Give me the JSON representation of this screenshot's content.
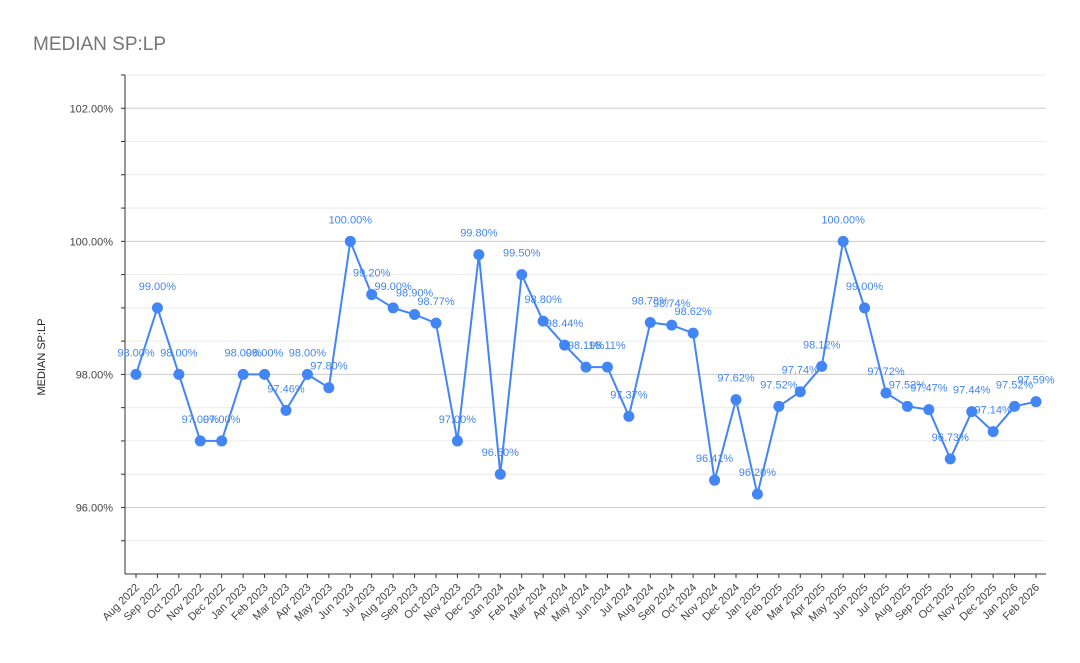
{
  "chart_data": {
    "type": "line",
    "title": "MEDIAN SP:LP",
    "ylabel": "MEDIAN SP:LP",
    "xlabel": "",
    "ylim": [
      95,
      102.5
    ],
    "y_ticks": [
      "96.00%",
      "98.00%",
      "100.00%",
      "102.00%"
    ],
    "y_tick_values": [
      96,
      98,
      100,
      102
    ],
    "grid": true,
    "legend": "none",
    "color": "#4285f4",
    "categories": [
      "Aug 2022",
      "Sep 2022",
      "Oct 2022",
      "Nov 2022",
      "Dec 2022",
      "Jan 2023",
      "Feb 2023",
      "Mar 2023",
      "Apr 2023",
      "May 2023",
      "Jun 2023",
      "Jul 2023",
      "Aug 2023",
      "Sep 2023",
      "Oct 2023",
      "Nov 2023",
      "Dec 2023",
      "Jan 2024",
      "Feb 2024",
      "Mar 2024",
      "Apr 2024",
      "May 2024",
      "Jun 2024",
      "Jul 2024",
      "Aug 2024",
      "Sep 2024",
      "Oct 2024",
      "Nov 2024",
      "Dec 2024",
      "Jan 2025",
      "Feb 2025",
      "Mar 2025",
      "Apr 2025",
      "May 2025",
      "Jun 2025",
      "Jul 2025",
      "Aug 2025",
      "Sep 2025",
      "Oct 2025",
      "Nov 2025",
      "Dec 2025",
      "Jan 2026",
      "Feb 2026"
    ],
    "values": [
      98.0,
      99.0,
      98.0,
      97.0,
      97.0,
      98.0,
      98.0,
      97.46,
      98.0,
      97.8,
      100.0,
      99.2,
      99.0,
      98.9,
      98.77,
      97.0,
      99.8,
      96.5,
      99.5,
      98.8,
      98.44,
      98.11,
      98.11,
      97.37,
      98.78,
      98.74,
      98.62,
      96.41,
      97.62,
      96.2,
      97.52,
      97.74,
      98.12,
      100.0,
      99.0,
      97.72,
      97.52,
      97.47,
      96.73,
      97.44,
      97.14,
      97.52,
      97.59
    ],
    "labels": [
      "98.00%",
      "99.00%",
      "98.00%",
      "97.00%",
      "97.00%",
      "98.00%",
      "98.00%",
      "97.46%",
      "98.00%",
      "97.80%",
      "100.00%",
      "99.20%",
      "99.00%",
      "98.90%",
      "98.77%",
      "97.00%",
      "99.80%",
      "96.50%",
      "99.50%",
      "98.80%",
      "98.44%",
      "98.11%",
      "98.11%",
      "97.37%",
      "98.78%",
      "98.74%",
      "98.62%",
      "96.41%",
      "97.62%",
      "96.20%",
      "97.52%",
      "97.74%",
      "98.12%",
      "100.00%",
      "99.00%",
      "97.72%",
      "97.52%",
      "97.47%",
      "96.73%",
      "97.44%",
      "97.14%",
      "97.52%",
      "97.59%"
    ]
  }
}
